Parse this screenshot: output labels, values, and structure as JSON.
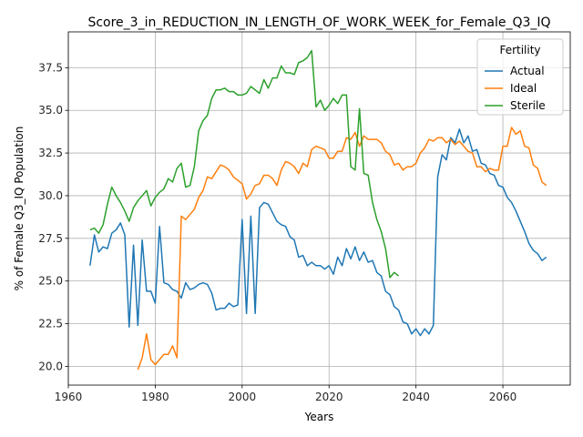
{
  "chart_data": {
    "type": "line",
    "title": "Score_3_in_REDUCTION_IN_LENGTH_OF_WORK_WEEK_for_Female_Q3_IQ",
    "xlabel": "Years",
    "ylabel": "% of Female Q3_IQ Population",
    "xlim": [
      1960,
      2075.5
    ],
    "ylim": [
      18.9,
      39.6
    ],
    "xticks": [
      1960,
      1980,
      2000,
      2020,
      2040,
      2060
    ],
    "yticks": [
      20.0,
      22.5,
      25.0,
      27.5,
      30.0,
      32.5,
      35.0,
      37.5
    ],
    "grid": true,
    "legend": {
      "title": "Fertility",
      "position": "top-right"
    },
    "series": [
      {
        "name": "Actual",
        "color": "#1f77b4",
        "x": [
          1965,
          1966,
          1967,
          1968,
          1969,
          1970,
          1971,
          1972,
          1973,
          1974,
          1975,
          1976,
          1977,
          1978,
          1979,
          1980,
          1981,
          1982,
          1983,
          1984,
          1985,
          1986,
          1987,
          1988,
          1989,
          1990,
          1991,
          1992,
          1993,
          1994,
          1995,
          1996,
          1997,
          1998,
          1999,
          2000,
          2001,
          2002,
          2003,
          2004,
          2005,
          2006,
          2007,
          2008,
          2009,
          2010,
          2011,
          2012,
          2013,
          2014,
          2015,
          2016,
          2017,
          2018,
          2019,
          2020,
          2021,
          2022,
          2023,
          2024,
          2025,
          2026,
          2027,
          2028,
          2029,
          2030,
          2031,
          2032,
          2033,
          2034,
          2035,
          2036,
          2037,
          2038,
          2039,
          2040,
          2041,
          2042,
          2043,
          2044,
          2045,
          2046,
          2047,
          2048,
          2049,
          2050,
          2051,
          2052,
          2053,
          2054,
          2055,
          2056,
          2057,
          2058,
          2059,
          2060,
          2061,
          2062,
          2063,
          2064,
          2065,
          2066,
          2067,
          2068,
          2069,
          2070
        ],
        "values": [
          25.9,
          27.7,
          26.7,
          27.0,
          26.9,
          27.8,
          28.0,
          28.4,
          27.7,
          22.3,
          27.1,
          22.4,
          27.4,
          24.4,
          24.4,
          23.7,
          28.2,
          24.9,
          24.8,
          24.5,
          24.4,
          24.0,
          24.9,
          24.5,
          24.6,
          24.8,
          24.9,
          24.8,
          24.3,
          23.3,
          23.4,
          23.4,
          23.7,
          23.5,
          23.6,
          28.6,
          23.1,
          28.8,
          23.1,
          29.3,
          29.6,
          29.5,
          29.0,
          28.5,
          28.3,
          28.2,
          27.6,
          27.4,
          26.4,
          26.5,
          25.9,
          26.1,
          25.9,
          25.9,
          25.7,
          25.9,
          25.4,
          26.4,
          25.9,
          26.9,
          26.3,
          27.0,
          26.2,
          26.7,
          26.1,
          26.2,
          25.5,
          25.3,
          24.4,
          24.2,
          23.5,
          23.3,
          22.6,
          22.5,
          21.9,
          22.2,
          21.8,
          22.2,
          21.9,
          22.4,
          31.1,
          32.4,
          32.1,
          33.4,
          33.1,
          33.9,
          33.1,
          33.5,
          32.6,
          32.7,
          31.9,
          31.8,
          31.3,
          31.2,
          30.6,
          30.5,
          29.9,
          29.6,
          29.1,
          28.5,
          27.9,
          27.2,
          26.8,
          26.6,
          26.2,
          26.4
        ]
      },
      {
        "name": "Ideal",
        "color": "#ff7f0e",
        "x": [
          1976,
          1977,
          1978,
          1979,
          1980,
          1981,
          1982,
          1983,
          1984,
          1985,
          1986,
          1987,
          1988,
          1989,
          1990,
          1991,
          1992,
          1993,
          1994,
          1995,
          1996,
          1997,
          1998,
          1999,
          2000,
          2001,
          2002,
          2003,
          2004,
          2005,
          2006,
          2007,
          2008,
          2009,
          2010,
          2011,
          2012,
          2013,
          2014,
          2015,
          2016,
          2017,
          2018,
          2019,
          2020,
          2021,
          2022,
          2023,
          2024,
          2025,
          2026,
          2027,
          2028,
          2029,
          2030,
          2031,
          2032,
          2033,
          2034,
          2035,
          2036,
          2037,
          2038,
          2039,
          2040,
          2041,
          2042,
          2043,
          2044,
          2045,
          2046,
          2047,
          2048,
          2049,
          2050,
          2051,
          2052,
          2053,
          2054,
          2055,
          2056,
          2057,
          2058,
          2059,
          2060,
          2061,
          2062,
          2063,
          2064,
          2065,
          2066,
          2067,
          2068,
          2069,
          2070
        ],
        "values": [
          19.8,
          20.5,
          21.9,
          20.4,
          20.1,
          20.4,
          20.7,
          20.7,
          21.2,
          20.5,
          28.8,
          28.6,
          28.9,
          29.2,
          29.9,
          30.3,
          31.1,
          31.0,
          31.4,
          31.8,
          31.7,
          31.5,
          31.1,
          30.9,
          30.7,
          29.8,
          30.1,
          30.6,
          30.7,
          31.2,
          31.2,
          31.0,
          30.6,
          31.5,
          32.0,
          31.9,
          31.7,
          31.3,
          31.9,
          31.7,
          32.7,
          32.9,
          32.8,
          32.7,
          32.2,
          32.2,
          32.6,
          32.6,
          33.4,
          33.3,
          33.7,
          32.9,
          33.5,
          33.3,
          33.3,
          33.3,
          33.1,
          32.6,
          32.4,
          31.8,
          31.9,
          31.5,
          31.7,
          31.7,
          31.9,
          32.5,
          32.8,
          33.3,
          33.2,
          33.4,
          33.4,
          33.1,
          33.3,
          33.0,
          33.2,
          32.9,
          32.6,
          32.5,
          31.7,
          31.7,
          31.4,
          31.6,
          31.5,
          31.5,
          32.9,
          32.9,
          34.0,
          33.6,
          33.8,
          32.9,
          32.8,
          31.8,
          31.6,
          30.8,
          30.6
        ]
      },
      {
        "name": "Sterile",
        "color": "#2ca02c",
        "x": [
          1965,
          1966,
          1967,
          1968,
          1969,
          1970,
          1971,
          1972,
          1973,
          1974,
          1975,
          1976,
          1977,
          1978,
          1979,
          1980,
          1981,
          1982,
          1983,
          1984,
          1985,
          1986,
          1987,
          1988,
          1989,
          1990,
          1991,
          1992,
          1993,
          1994,
          1995,
          1996,
          1997,
          1998,
          1999,
          2000,
          2001,
          2002,
          2003,
          2004,
          2005,
          2006,
          2007,
          2008,
          2009,
          2010,
          2011,
          2012,
          2013,
          2014,
          2015,
          2016,
          2017,
          2018,
          2019,
          2020,
          2021,
          2022,
          2023,
          2024,
          2025,
          2026,
          2027,
          2028,
          2029,
          2030,
          2031,
          2032,
          2033,
          2034,
          2035,
          2036,
          2037
        ],
        "values": [
          28.0,
          28.1,
          27.8,
          28.3,
          29.5,
          30.5,
          30.0,
          29.6,
          29.1,
          28.5,
          29.3,
          29.7,
          30.0,
          30.3,
          29.4,
          29.9,
          30.2,
          30.4,
          31.0,
          30.8,
          31.6,
          31.9,
          30.5,
          30.6,
          31.7,
          33.8,
          34.4,
          34.7,
          35.7,
          36.2,
          36.2,
          36.3,
          36.1,
          36.1,
          35.9,
          35.9,
          36.0,
          36.4,
          36.2,
          36.0,
          36.8,
          36.3,
          36.9,
          36.9,
          37.6,
          37.2,
          37.2,
          37.1,
          37.8,
          37.9,
          38.1,
          38.5,
          35.2,
          35.6,
          35.0,
          35.3,
          35.7,
          35.4,
          35.9,
          35.9,
          31.7,
          31.5,
          35.1,
          31.3,
          31.2,
          29.6,
          28.6,
          27.9,
          26.9,
          25.2,
          25.5,
          25.3,
          null
        ]
      }
    ]
  }
}
